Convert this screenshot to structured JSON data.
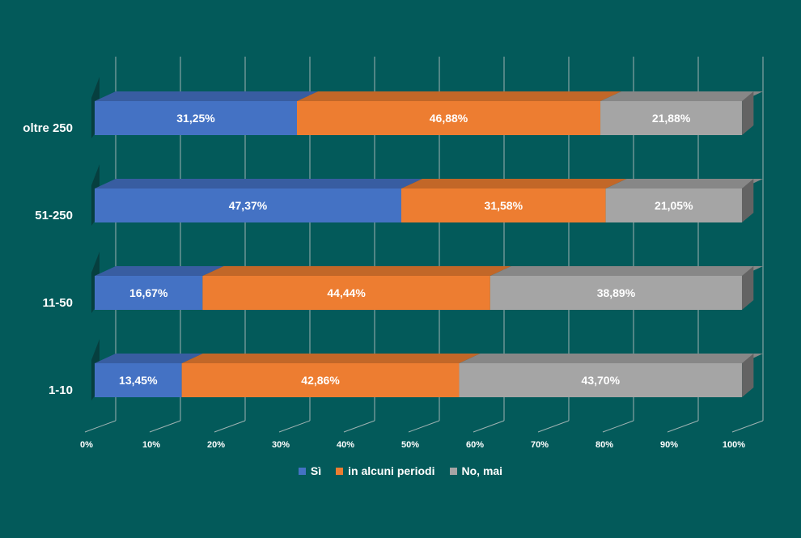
{
  "chart_data": {
    "type": "bar",
    "orientation": "horizontal",
    "stacked": true,
    "percent_stacked": true,
    "categories": [
      "oltre 250",
      "51-250",
      "11-50",
      "1-10"
    ],
    "series": [
      {
        "name": "Sì",
        "color": "#4472c4",
        "values": [
          31.25,
          47.37,
          16.67,
          13.45
        ],
        "labels": [
          "31,25%",
          "47,37%",
          "16,67%",
          "13,45%"
        ]
      },
      {
        "name": "in alcuni periodi",
        "color": "#ed7d31",
        "values": [
          46.88,
          31.58,
          44.44,
          42.86
        ],
        "labels": [
          "46,88%",
          "31,58%",
          "44,44%",
          "42,86%"
        ]
      },
      {
        "name": "No, mai",
        "color": "#a5a5a5",
        "values": [
          21.88,
          21.05,
          38.89,
          43.7
        ],
        "labels": [
          "21,88%",
          "21,05%",
          "38,89%",
          "43,70%"
        ]
      }
    ],
    "x_ticks": [
      "0%",
      "10%",
      "20%",
      "30%",
      "40%",
      "50%",
      "60%",
      "70%",
      "80%",
      "90%",
      "100%"
    ],
    "xlim": [
      0,
      100
    ],
    "grid": true,
    "legend": "bottom",
    "three_d": true
  },
  "colors": {
    "background": "#035a5a",
    "gridline": "#9fb3b3",
    "text": "#ffffff"
  }
}
